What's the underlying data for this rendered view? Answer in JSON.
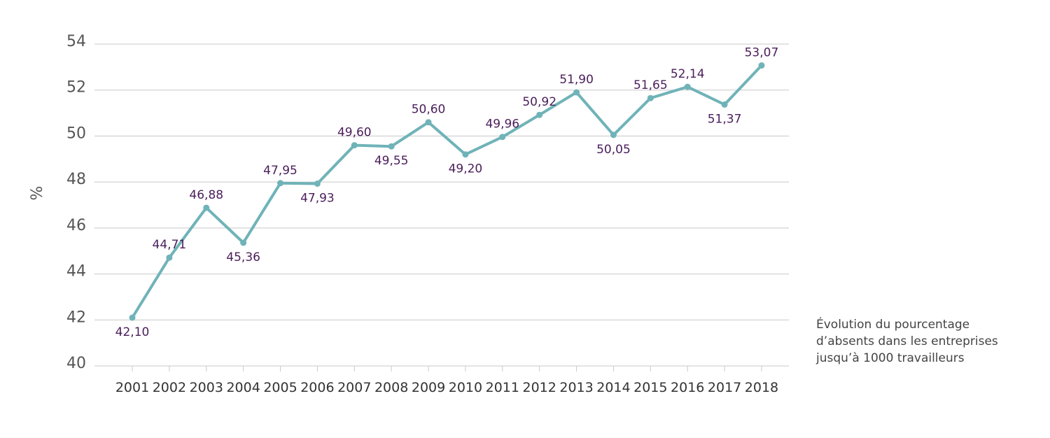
{
  "chart_data": {
    "type": "line",
    "x": [
      "2001",
      "2002",
      "2003",
      "2004",
      "2005",
      "2006",
      "2007",
      "2008",
      "2009",
      "2010",
      "2011",
      "2012",
      "2013",
      "2014",
      "2015",
      "2016",
      "2017",
      "2018"
    ],
    "series": [
      {
        "values": [
          42.1,
          44.71,
          46.88,
          45.36,
          47.95,
          47.93,
          49.6,
          49.55,
          50.6,
          49.2,
          49.96,
          50.92,
          51.9,
          50.05,
          51.65,
          52.14,
          51.37,
          53.07
        ],
        "labels": [
          "42,10",
          "44,71",
          "46,88",
          "45,36",
          "47,95",
          "47,93",
          "49,60",
          "49,55",
          "50,60",
          "49,20",
          "49,96",
          "50,92",
          "51,90",
          "50,05",
          "51,65",
          "52,14",
          "51,37",
          "53,07"
        ],
        "color": "#6fb3b8"
      }
    ],
    "label_color": "#4a1d5a",
    "ylabel": "%",
    "ylim": [
      40,
      54
    ],
    "yticks": [
      "40",
      "42",
      "44",
      "46",
      "48",
      "50",
      "52",
      "54"
    ],
    "grid": true,
    "caption": [
      "Évolution du pourcentage",
      "d’absents dans les entreprises",
      "jusqu’à 1000 travailleurs"
    ]
  }
}
